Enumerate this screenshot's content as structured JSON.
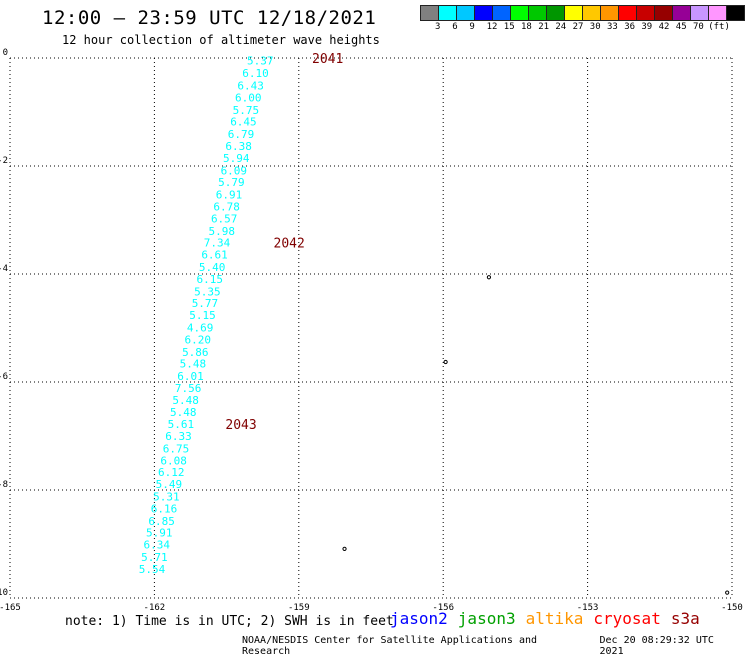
{
  "header": {
    "title": "12:00 – 23:59 UTC 12/18/2021",
    "subtitle": "12 hour collection of altimeter wave heights"
  },
  "legend": {
    "colors": [
      "#808080",
      "#00ffff",
      "#00c8ff",
      "#0000ff",
      "#0064ff",
      "#00ff00",
      "#00c800",
      "#009600",
      "#ffff00",
      "#ffc800",
      "#ff9600",
      "#ff0000",
      "#c80000",
      "#960000",
      "#960096",
      "#c896ff",
      "#ff96ff",
      "#000000"
    ],
    "labels": [
      "3",
      "6",
      "9",
      "12",
      "15",
      "18",
      "21",
      "24",
      "27",
      "30",
      "33",
      "36",
      "39",
      "42",
      "45",
      "70",
      "(ft)"
    ]
  },
  "map": {
    "x_ticks": [
      "-165",
      "-162",
      "-159",
      "-156",
      "-153",
      "-150"
    ],
    "y_ticks": [
      "0",
      "-2",
      "-4",
      "-6",
      "-8",
      "-10"
    ],
    "lon_range": [
      -165,
      -150
    ],
    "lat_range": [
      -10,
      0
    ],
    "track_color": "#00ffff",
    "time_label_color": "#800000",
    "track": [
      {
        "lon": -159.8,
        "lat": -0.05,
        "v": "5.37"
      },
      {
        "lon": -159.9,
        "lat": -0.28,
        "v": "6.10"
      },
      {
        "lon": -160.0,
        "lat": -0.51,
        "v": "6.43"
      },
      {
        "lon": -160.05,
        "lat": -0.73,
        "v": "6.00"
      },
      {
        "lon": -160.1,
        "lat": -0.96,
        "v": "5.75"
      },
      {
        "lon": -160.15,
        "lat": -1.18,
        "v": "6.45"
      },
      {
        "lon": -160.2,
        "lat": -1.41,
        "v": "6.79"
      },
      {
        "lon": -160.25,
        "lat": -1.63,
        "v": "6.38"
      },
      {
        "lon": -160.3,
        "lat": -1.85,
        "v": "5.94"
      },
      {
        "lon": -160.35,
        "lat": -2.08,
        "v": "6.09"
      },
      {
        "lon": -160.4,
        "lat": -2.3,
        "v": "5.79"
      },
      {
        "lon": -160.45,
        "lat": -2.53,
        "v": "6.91"
      },
      {
        "lon": -160.5,
        "lat": -2.75,
        "v": "6.78"
      },
      {
        "lon": -160.55,
        "lat": -2.97,
        "v": "6.57"
      },
      {
        "lon": -160.6,
        "lat": -3.2,
        "v": "5.98"
      },
      {
        "lon": -160.7,
        "lat": -3.42,
        "v": "7.34"
      },
      {
        "lon": -160.75,
        "lat": -3.64,
        "v": "6.61"
      },
      {
        "lon": -160.8,
        "lat": -3.87,
        "v": "5.40"
      },
      {
        "lon": -160.85,
        "lat": -4.09,
        "v": "6.15"
      },
      {
        "lon": -160.9,
        "lat": -4.32,
        "v": "5.35"
      },
      {
        "lon": -160.95,
        "lat": -4.54,
        "v": "5.77"
      },
      {
        "lon": -161.0,
        "lat": -4.76,
        "v": "5.15"
      },
      {
        "lon": -161.05,
        "lat": -4.99,
        "v": "4.69"
      },
      {
        "lon": -161.1,
        "lat": -5.21,
        "v": "6.20"
      },
      {
        "lon": -161.15,
        "lat": -5.44,
        "v": "5.86"
      },
      {
        "lon": -161.2,
        "lat": -5.66,
        "v": "5.48"
      },
      {
        "lon": -161.25,
        "lat": -5.89,
        "v": "6.01"
      },
      {
        "lon": -161.3,
        "lat": -6.11,
        "v": "7.56"
      },
      {
        "lon": -161.35,
        "lat": -6.33,
        "v": "5.48"
      },
      {
        "lon": -161.4,
        "lat": -6.56,
        "v": "5.48"
      },
      {
        "lon": -161.45,
        "lat": -6.78,
        "v": "5.61"
      },
      {
        "lon": -161.5,
        "lat": -7.0,
        "v": "6.33"
      },
      {
        "lon": -161.55,
        "lat": -7.23,
        "v": "6.75"
      },
      {
        "lon": -161.6,
        "lat": -7.45,
        "v": "6.08"
      },
      {
        "lon": -161.65,
        "lat": -7.67,
        "v": "6.12"
      },
      {
        "lon": -161.7,
        "lat": -7.89,
        "v": "5.49"
      },
      {
        "lon": -161.75,
        "lat": -8.12,
        "v": "5.31"
      },
      {
        "lon": -161.8,
        "lat": -8.34,
        "v": "6.16"
      },
      {
        "lon": -161.85,
        "lat": -8.57,
        "v": "6.85"
      },
      {
        "lon": -161.9,
        "lat": -8.79,
        "v": "5.91"
      },
      {
        "lon": -161.95,
        "lat": -9.01,
        "v": "6.34"
      },
      {
        "lon": -162.0,
        "lat": -9.24,
        "v": "5.71"
      },
      {
        "lon": -162.05,
        "lat": -9.46,
        "v": "5.54"
      }
    ],
    "time_labels": [
      {
        "lon": -158.4,
        "lat": -0.0,
        "text": "2041"
      },
      {
        "lon": -159.2,
        "lat": -3.42,
        "text": "2042"
      },
      {
        "lon": -160.2,
        "lat": -6.78,
        "text": "2043"
      }
    ],
    "islands": [
      {
        "lon": -155.05,
        "lat": -4.06
      },
      {
        "lon": -155.95,
        "lat": -5.63
      },
      {
        "lon": -158.05,
        "lat": -9.09
      },
      {
        "lon": -150.1,
        "lat": -9.9
      }
    ]
  },
  "note": "note: 1) Time is in UTC; 2) SWH is in feet",
  "satellites": [
    {
      "name": "jason2",
      "color": "#0000ff"
    },
    {
      "name": "jason3",
      "color": "#00a000"
    },
    {
      "name": "altika",
      "color": "#ff9600"
    },
    {
      "name": "cryosat",
      "color": "#ff0000"
    },
    {
      "name": "s3a",
      "color": "#960000"
    }
  ],
  "footer": {
    "source": "NOAA/NESDIS Center for Satellite Applications and Research",
    "generated": "Dec 20 08:29:32 UTC 2021"
  }
}
